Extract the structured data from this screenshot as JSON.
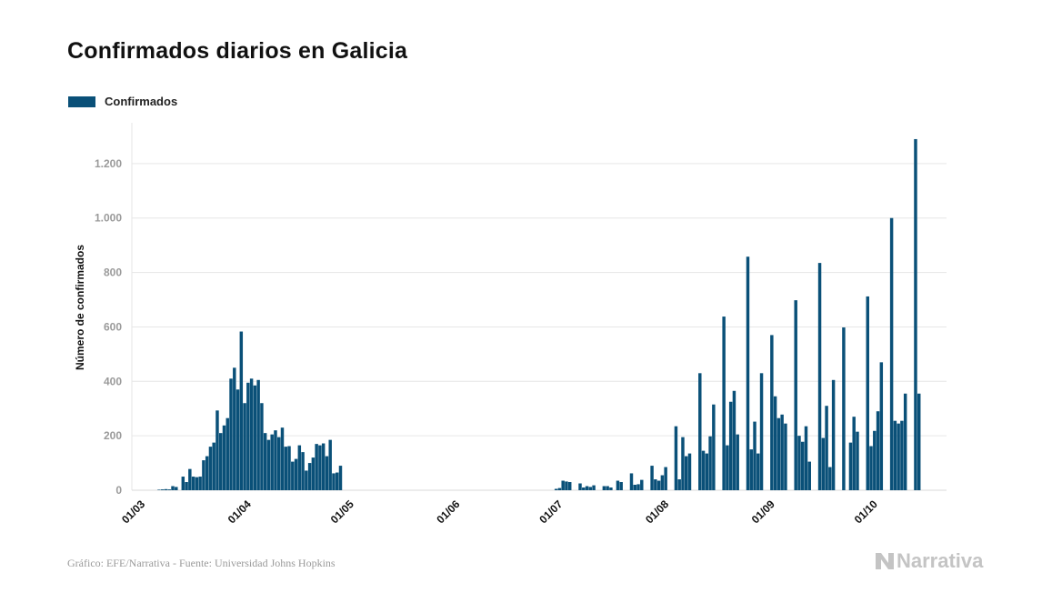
{
  "title": "Confirmados diarios en Galicia",
  "footer": {
    "source": "Gráfico: EFE/Narrativa - Fuente: Universidad Johns Hopkins",
    "brand": "Narrativa"
  },
  "colors": {
    "bar": "#0a5078",
    "grid": "#e6e6e6",
    "tick": "#9a9a9a",
    "brand": "#c4c4c4"
  },
  "chart_data": {
    "type": "bar",
    "title": "Confirmados diarios en Galicia",
    "xlabel": "",
    "ylabel": "Número de confirmados",
    "ylim": [
      0,
      1350
    ],
    "yticks": [
      0,
      200,
      400,
      600,
      800,
      1000,
      1200
    ],
    "ytick_labels": [
      "0",
      "200",
      "400",
      "600",
      "800",
      "1.000",
      "1.200"
    ],
    "x_start": "2020-02-26",
    "x_end": "2020-10-21",
    "xticks": [
      "01/03",
      "01/04",
      "01/05",
      "01/06",
      "01/07",
      "01/08",
      "01/09",
      "01/10"
    ],
    "grid": true,
    "legend_position": "top-left",
    "series": [
      {
        "name": "Confirmados",
        "color": "#0a5078",
        "points": [
          [
            "2020-03-01",
            0
          ],
          [
            "2020-03-02",
            0
          ],
          [
            "2020-03-03",
            0
          ],
          [
            "2020-03-04",
            0
          ],
          [
            "2020-03-05",
            2
          ],
          [
            "2020-03-06",
            3
          ],
          [
            "2020-03-07",
            4
          ],
          [
            "2020-03-08",
            3
          ],
          [
            "2020-03-09",
            15
          ],
          [
            "2020-03-10",
            12
          ],
          [
            "2020-03-11",
            0
          ],
          [
            "2020-03-12",
            50
          ],
          [
            "2020-03-13",
            30
          ],
          [
            "2020-03-14",
            78
          ],
          [
            "2020-03-15",
            50
          ],
          [
            "2020-03-16",
            48
          ],
          [
            "2020-03-17",
            50
          ],
          [
            "2020-03-18",
            110
          ],
          [
            "2020-03-19",
            125
          ],
          [
            "2020-03-20",
            160
          ],
          [
            "2020-03-21",
            175
          ],
          [
            "2020-03-22",
            293
          ],
          [
            "2020-03-23",
            210
          ],
          [
            "2020-03-24",
            238
          ],
          [
            "2020-03-25",
            265
          ],
          [
            "2020-03-26",
            410
          ],
          [
            "2020-03-27",
            450
          ],
          [
            "2020-03-28",
            370
          ],
          [
            "2020-03-29",
            583
          ],
          [
            "2020-03-30",
            320
          ],
          [
            "2020-03-31",
            395
          ],
          [
            "2020-04-01",
            410
          ],
          [
            "2020-04-02",
            385
          ],
          [
            "2020-04-03",
            405
          ],
          [
            "2020-04-04",
            320
          ],
          [
            "2020-04-05",
            210
          ],
          [
            "2020-04-06",
            185
          ],
          [
            "2020-04-07",
            205
          ],
          [
            "2020-04-08",
            220
          ],
          [
            "2020-04-09",
            195
          ],
          [
            "2020-04-10",
            230
          ],
          [
            "2020-04-11",
            160
          ],
          [
            "2020-04-12",
            162
          ],
          [
            "2020-04-13",
            105
          ],
          [
            "2020-04-14",
            115
          ],
          [
            "2020-04-15",
            165
          ],
          [
            "2020-04-16",
            140
          ],
          [
            "2020-04-17",
            72
          ],
          [
            "2020-04-18",
            100
          ],
          [
            "2020-04-19",
            120
          ],
          [
            "2020-04-20",
            170
          ],
          [
            "2020-04-21",
            165
          ],
          [
            "2020-04-22",
            172
          ],
          [
            "2020-04-23",
            125
          ],
          [
            "2020-04-24",
            185
          ],
          [
            "2020-04-25",
            62
          ],
          [
            "2020-04-26",
            65
          ],
          [
            "2020-04-27",
            90
          ],
          [
            "2020-04-28",
            0
          ],
          [
            "2020-04-29",
            0
          ],
          [
            "2020-04-30",
            0
          ],
          [
            "2020-05-01",
            0
          ],
          [
            "2020-06-29",
            5
          ],
          [
            "2020-06-30",
            8
          ],
          [
            "2020-07-01",
            35
          ],
          [
            "2020-07-02",
            32
          ],
          [
            "2020-07-03",
            30
          ],
          [
            "2020-07-06",
            25
          ],
          [
            "2020-07-07",
            10
          ],
          [
            "2020-07-08",
            15
          ],
          [
            "2020-07-09",
            12
          ],
          [
            "2020-07-10",
            18
          ],
          [
            "2020-07-13",
            15
          ],
          [
            "2020-07-14",
            15
          ],
          [
            "2020-07-15",
            10
          ],
          [
            "2020-07-17",
            35
          ],
          [
            "2020-07-18",
            30
          ],
          [
            "2020-07-21",
            62
          ],
          [
            "2020-07-22",
            20
          ],
          [
            "2020-07-23",
            22
          ],
          [
            "2020-07-24",
            38
          ],
          [
            "2020-07-27",
            90
          ],
          [
            "2020-07-28",
            40
          ],
          [
            "2020-07-29",
            35
          ],
          [
            "2020-07-30",
            55
          ],
          [
            "2020-07-31",
            85
          ],
          [
            "2020-08-03",
            235
          ],
          [
            "2020-08-04",
            40
          ],
          [
            "2020-08-05",
            195
          ],
          [
            "2020-08-06",
            125
          ],
          [
            "2020-08-07",
            135
          ],
          [
            "2020-08-10",
            430
          ],
          [
            "2020-08-11",
            145
          ],
          [
            "2020-08-12",
            135
          ],
          [
            "2020-08-13",
            198
          ],
          [
            "2020-08-14",
            315
          ],
          [
            "2020-08-17",
            638
          ],
          [
            "2020-08-18",
            165
          ],
          [
            "2020-08-19",
            325
          ],
          [
            "2020-08-20",
            365
          ],
          [
            "2020-08-21",
            205
          ],
          [
            "2020-08-24",
            858
          ],
          [
            "2020-08-25",
            150
          ],
          [
            "2020-08-26",
            252
          ],
          [
            "2020-08-27",
            135
          ],
          [
            "2020-08-28",
            430
          ],
          [
            "2020-08-31",
            570
          ],
          [
            "2020-09-01",
            345
          ],
          [
            "2020-09-02",
            265
          ],
          [
            "2020-09-03",
            278
          ],
          [
            "2020-09-04",
            245
          ],
          [
            "2020-09-07",
            698
          ],
          [
            "2020-09-08",
            200
          ],
          [
            "2020-09-09",
            178
          ],
          [
            "2020-09-10",
            235
          ],
          [
            "2020-09-11",
            105
          ],
          [
            "2020-09-14",
            835
          ],
          [
            "2020-09-15",
            192
          ],
          [
            "2020-09-16",
            310
          ],
          [
            "2020-09-17",
            85
          ],
          [
            "2020-09-18",
            405
          ],
          [
            "2020-09-21",
            598
          ],
          [
            "2020-09-23",
            175
          ],
          [
            "2020-09-24",
            270
          ],
          [
            "2020-09-25",
            215
          ],
          [
            "2020-09-28",
            712
          ],
          [
            "2020-09-29",
            162
          ],
          [
            "2020-09-30",
            218
          ],
          [
            "2020-10-01",
            290
          ],
          [
            "2020-10-02",
            470
          ],
          [
            "2020-10-05",
            1000
          ],
          [
            "2020-10-06",
            255
          ],
          [
            "2020-10-07",
            245
          ],
          [
            "2020-10-08",
            255
          ],
          [
            "2020-10-09",
            355
          ],
          [
            "2020-10-12",
            1290
          ],
          [
            "2020-10-13",
            355
          ]
        ]
      }
    ]
  }
}
